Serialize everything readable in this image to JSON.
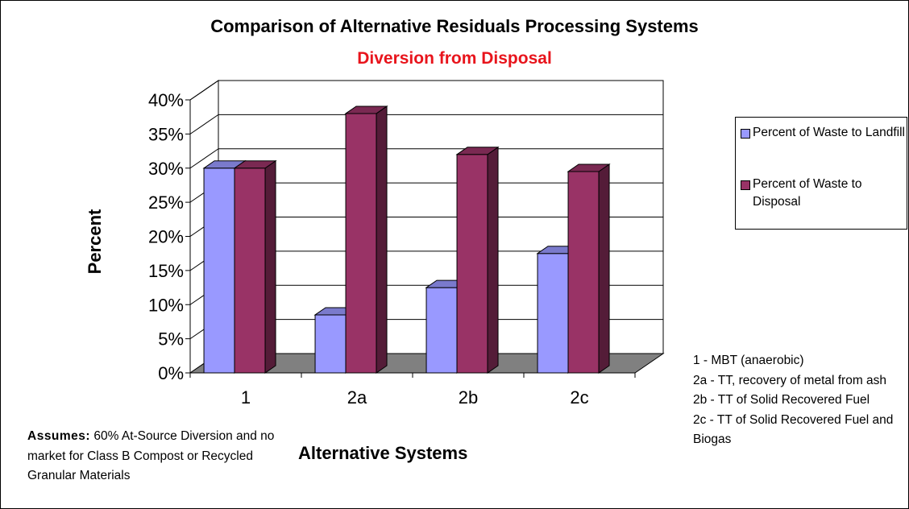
{
  "chart_data": {
    "type": "bar",
    "title": "Comparison of Alternative Residuals Processing Systems",
    "subtitle": "Diversion from Disposal",
    "xlabel": "Alternative Systems",
    "ylabel": "Percent",
    "categories": [
      "1",
      "2a",
      "2b",
      "2c"
    ],
    "yticks": [
      "0%",
      "5%",
      "10%",
      "15%",
      "20%",
      "25%",
      "30%",
      "35%",
      "40%"
    ],
    "ylim": [
      0,
      40
    ],
    "series": [
      {
        "name": "Percent of Waste to Landfill",
        "color": "#9999ff",
        "values": [
          30,
          8.5,
          12.5,
          17.5
        ]
      },
      {
        "name": "Percent of Waste to Disposal",
        "color": "#993366",
        "values": [
          30,
          38,
          32,
          29.5
        ]
      }
    ],
    "legend_position": "right",
    "notes": [
      "1 - MBT (anaerobic)",
      "2a - TT, recovery of metal from ash",
      "2b - TT of Solid Recovered Fuel",
      "2c - TT of Solid Recovered Fuel and Biogas"
    ],
    "assumes_label": "Assumes:",
    "assumes_text": "60% At-Source Diversion and no market for Class B Compost or Recycled Granular Materials"
  }
}
